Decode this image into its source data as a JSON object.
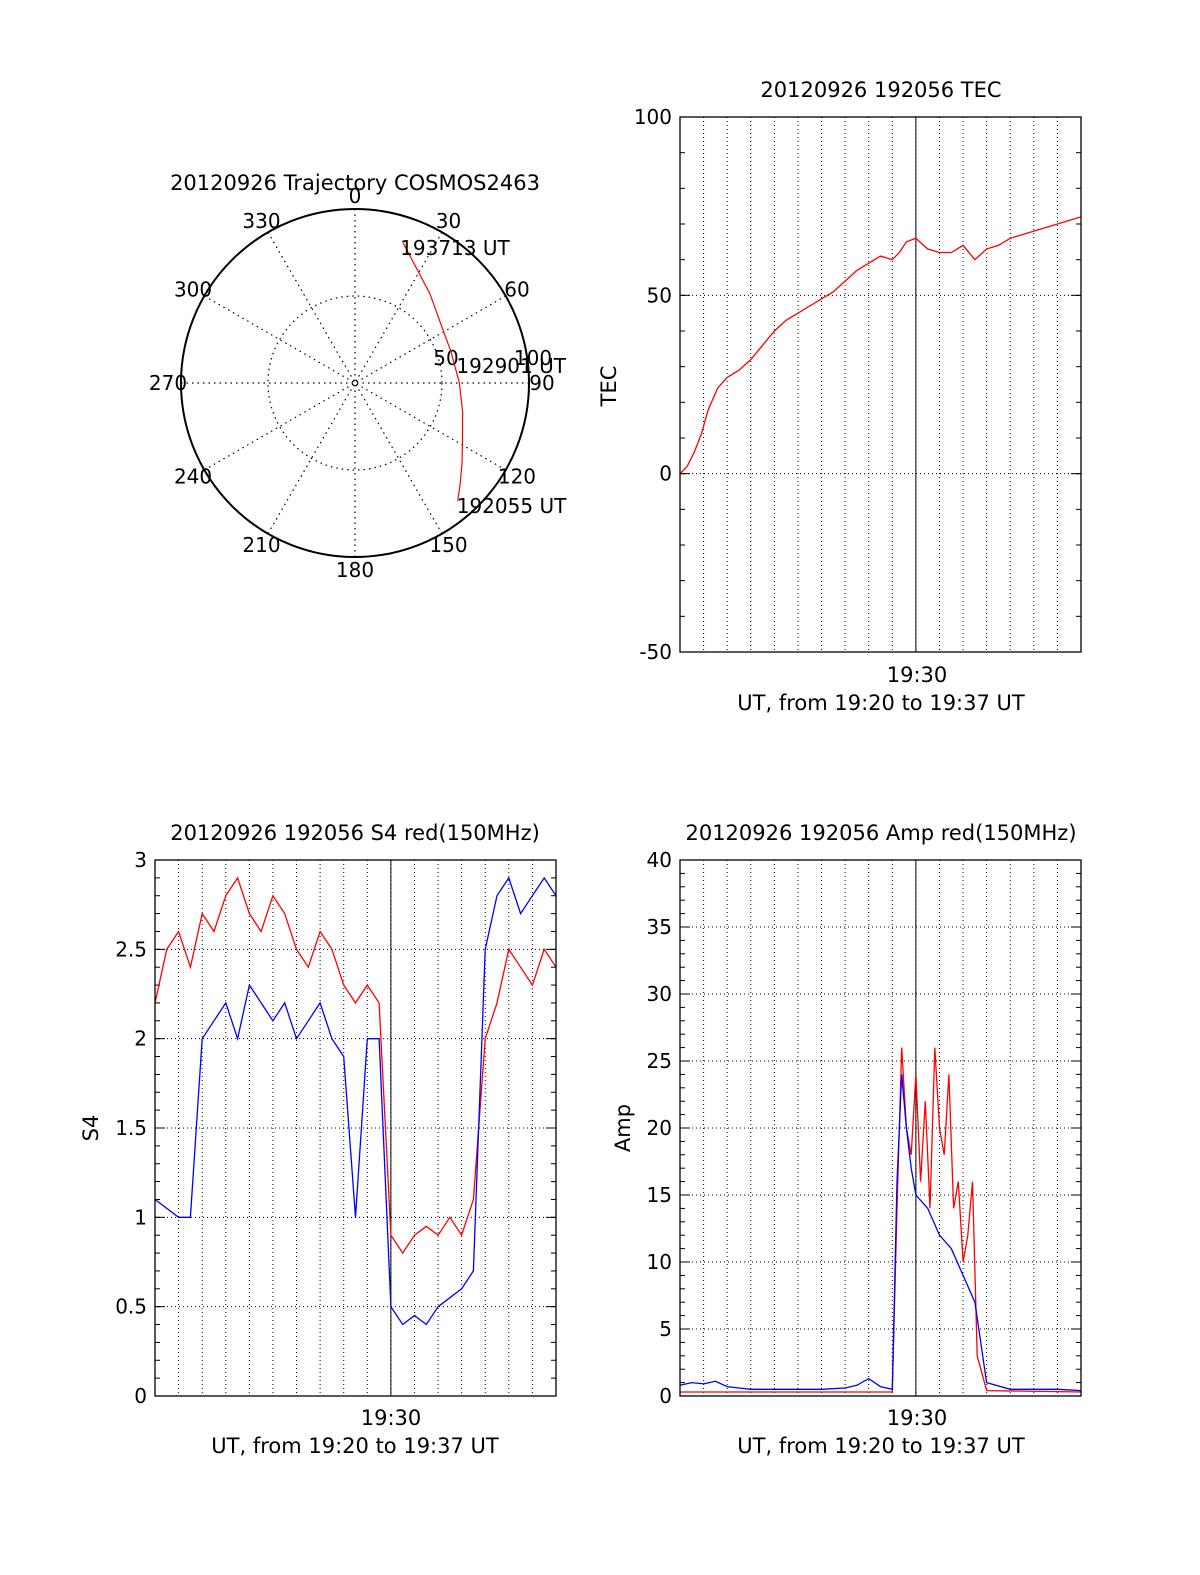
{
  "colors": {
    "red": "#ff0000",
    "blue": "#0000ff",
    "axis": "#000000",
    "grid": "#000000"
  },
  "chart_data": [
    {
      "id": "polar",
      "type": "polar",
      "title": "20120926 Trajectory COSMOS2463",
      "angle_labels": [
        {
          "angle": 0,
          "label": "0"
        },
        {
          "angle": 30,
          "label": "30"
        },
        {
          "angle": 60,
          "label": "60"
        },
        {
          "angle": 90,
          "label": "90"
        },
        {
          "angle": 120,
          "label": "120"
        },
        {
          "angle": 150,
          "label": "150"
        },
        {
          "angle": 180,
          "label": "180"
        },
        {
          "angle": 210,
          "label": "210"
        },
        {
          "angle": 240,
          "label": "240"
        },
        {
          "angle": 270,
          "label": "270"
        },
        {
          "angle": 300,
          "label": "300"
        },
        {
          "angle": 330,
          "label": "330"
        }
      ],
      "radial_labels": [
        "50",
        "100"
      ],
      "trajectory": {
        "start_label": "192055 UT",
        "mid_label": "192901 UT",
        "end_label": "193713 UT",
        "points": [
          {
            "az": 19,
            "r": 85
          },
          {
            "az": 28,
            "r": 75
          },
          {
            "az": 40,
            "r": 67
          },
          {
            "az": 55,
            "r": 60
          },
          {
            "az": 72,
            "r": 58
          },
          {
            "az": 90,
            "r": 60
          },
          {
            "az": 105,
            "r": 64
          },
          {
            "az": 118,
            "r": 70
          },
          {
            "az": 127,
            "r": 77
          },
          {
            "az": 134,
            "r": 84
          },
          {
            "az": 139,
            "r": 90
          }
        ]
      }
    },
    {
      "id": "tec",
      "type": "line",
      "title": "20120926 192056 TEC",
      "ylabel": "TEC",
      "xlabel": "UT, from 19:20 to 19:37 UT",
      "xtick_label": "19:30",
      "ylim": [
        -50,
        100
      ],
      "yticks": [
        "-50",
        "0",
        "50",
        "100"
      ],
      "series": [
        {
          "x": [
            0.0,
            0.3,
            0.6,
            0.9,
            1.2,
            1.6,
            2.0,
            2.5,
            3.0,
            3.5,
            4.0,
            4.5,
            5.0,
            5.5,
            6.0,
            6.5,
            7.0,
            7.5,
            8.0,
            8.5,
            9.0,
            9.3,
            9.6,
            10.0,
            10.5,
            11.0,
            11.5,
            12.0,
            12.5,
            13.0,
            13.5,
            14.0,
            14.5,
            15.0,
            15.5,
            16.0,
            16.5,
            17.0
          ],
          "y": [
            0,
            2,
            6,
            11,
            18,
            24,
            27,
            29,
            32,
            36,
            40,
            43,
            45,
            47,
            49,
            51,
            54,
            57,
            59,
            61,
            60,
            62,
            65,
            66,
            63,
            62,
            62,
            64,
            60,
            63,
            64,
            66,
            67,
            68,
            69,
            70,
            71,
            72
          ]
        }
      ]
    },
    {
      "id": "s4",
      "type": "line",
      "title": "20120926 192056 S4 red(150MHz)",
      "ylabel": "S4",
      "xlabel": "UT, from 19:20 to 19:37 UT",
      "xtick_label": "19:30",
      "ylim": [
        0,
        3
      ],
      "yticks": [
        "0",
        "0.5",
        "1",
        "1.5",
        "2",
        "2.5",
        "3"
      ],
      "series": [
        {
          "color": "red",
          "x": [
            0.0,
            0.5,
            1.0,
            1.5,
            2.0,
            2.5,
            3.0,
            3.5,
            4.0,
            4.5,
            5.0,
            5.5,
            6.0,
            6.5,
            7.0,
            7.5,
            8.0,
            8.5,
            9.0,
            9.5,
            10.0,
            10.5,
            11.0,
            11.5,
            12.0,
            12.5,
            13.0,
            13.5,
            14.0,
            14.5,
            15.0,
            15.5,
            16.0,
            16.5,
            17.0
          ],
          "y": [
            2.2,
            2.5,
            2.6,
            2.4,
            2.7,
            2.6,
            2.8,
            2.9,
            2.7,
            2.6,
            2.8,
            2.7,
            2.5,
            2.4,
            2.6,
            2.5,
            2.3,
            2.2,
            2.3,
            2.2,
            0.9,
            0.8,
            0.9,
            0.95,
            0.9,
            1.0,
            0.9,
            1.1,
            2.0,
            2.2,
            2.5,
            2.4,
            2.3,
            2.5,
            2.4
          ]
        },
        {
          "color": "blue",
          "x": [
            0.0,
            0.5,
            1.0,
            1.5,
            2.0,
            2.5,
            3.0,
            3.5,
            4.0,
            4.5,
            5.0,
            5.5,
            6.0,
            6.5,
            7.0,
            7.5,
            8.0,
            8.5,
            9.0,
            9.5,
            10.0,
            10.5,
            11.0,
            11.5,
            12.0,
            12.5,
            13.0,
            13.5,
            14.0,
            14.5,
            15.0,
            15.5,
            16.0,
            16.5,
            17.0
          ],
          "y": [
            1.1,
            1.05,
            1.0,
            1.0,
            2.0,
            2.1,
            2.2,
            2.0,
            2.3,
            2.2,
            2.1,
            2.2,
            2.0,
            2.1,
            2.2,
            2.0,
            1.9,
            1.0,
            2.0,
            2.0,
            0.5,
            0.4,
            0.45,
            0.4,
            0.5,
            0.55,
            0.6,
            0.7,
            2.5,
            2.8,
            2.9,
            2.7,
            2.8,
            2.9,
            2.8
          ]
        }
      ]
    },
    {
      "id": "amp",
      "type": "line",
      "title": "20120926 192056 Amp red(150MHz)",
      "ylabel": "Amp",
      "xlabel": "UT, from 19:20 to 19:37 UT",
      "xtick_label": "19:30",
      "ylim": [
        0,
        40
      ],
      "yticks": [
        "0",
        "5",
        "10",
        "15",
        "20",
        "25",
        "30",
        "35",
        "40"
      ],
      "series": [
        {
          "color": "red",
          "x": [
            0.0,
            9.0,
            9.2,
            9.4,
            9.6,
            9.8,
            10.0,
            10.2,
            10.4,
            10.6,
            10.8,
            11.0,
            11.2,
            11.4,
            11.6,
            11.8,
            12.0,
            12.2,
            12.4,
            12.6,
            13.0,
            17.0
          ],
          "y": [
            0.3,
            0.3,
            14,
            26,
            20,
            18,
            24,
            16,
            22,
            14,
            26,
            20,
            18,
            24,
            14,
            16,
            10,
            12,
            16,
            3,
            0.4,
            0.3
          ]
        },
        {
          "color": "blue",
          "x": [
            0.0,
            0.5,
            1.0,
            1.5,
            2.0,
            2.5,
            3.0,
            4.0,
            5.0,
            6.0,
            7.0,
            7.5,
            8.0,
            8.5,
            9.0,
            9.2,
            9.4,
            9.6,
            9.8,
            10.0,
            10.5,
            11.0,
            11.5,
            12.0,
            12.5,
            13.0,
            14.0,
            15.0,
            16.0,
            17.0
          ],
          "y": [
            0.8,
            1.0,
            0.9,
            1.1,
            0.7,
            0.6,
            0.5,
            0.5,
            0.5,
            0.5,
            0.6,
            0.8,
            1.3,
            0.7,
            0.5,
            16,
            24,
            20,
            17,
            15,
            14,
            12,
            11,
            9,
            7,
            1.0,
            0.5,
            0.5,
            0.5,
            0.4
          ]
        }
      ]
    }
  ]
}
